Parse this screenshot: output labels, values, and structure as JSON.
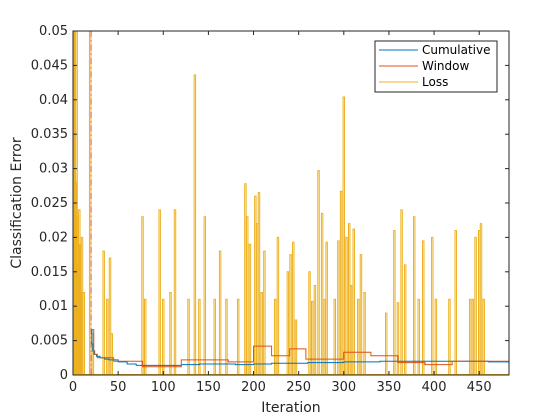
{
  "chart_data": {
    "type": "line",
    "title": "",
    "xlabel": "Iteration",
    "ylabel": "Classification Error",
    "xlim": [
      0,
      483
    ],
    "ylim": [
      0,
      0.05
    ],
    "x_ticks": [
      0,
      50,
      100,
      150,
      200,
      250,
      300,
      350,
      400,
      450
    ],
    "x_tick_labels": [
      "0",
      "50",
      "100",
      "150",
      "200",
      "250",
      "300",
      "350",
      "400",
      "450"
    ],
    "y_ticks": [
      0,
      0.005,
      0.01,
      0.015,
      0.02,
      0.025,
      0.03,
      0.035,
      0.04,
      0.045,
      0.05
    ],
    "y_tick_labels": [
      "0",
      "0.005",
      "0.01",
      "0.015",
      "0.02",
      "0.025",
      "0.03",
      "0.035",
      "0.04",
      "0.045",
      "0.05"
    ],
    "grid": false,
    "legend_position": "top-right",
    "vertical_marker": {
      "x": 20,
      "style": "dash-dot",
      "color": "#d9534f"
    },
    "series": [
      {
        "name": "Cumulative",
        "color": "#0072BD",
        "x": [
          20,
          21,
          22,
          24,
          26,
          30,
          35,
          40,
          50,
          60,
          70,
          80,
          90,
          100,
          120,
          140,
          160,
          180,
          200,
          220,
          240,
          260,
          280,
          300,
          320,
          340,
          360,
          380,
          400,
          420,
          440,
          460,
          483
        ],
        "y": [
          0.0066,
          0.0045,
          0.0035,
          0.003,
          0.0027,
          0.0025,
          0.0023,
          0.0022,
          0.0019,
          0.0016,
          0.0014,
          0.0014,
          0.0014,
          0.0014,
          0.0015,
          0.0016,
          0.0016,
          0.0015,
          0.0016,
          0.0017,
          0.0017,
          0.0018,
          0.0018,
          0.0019,
          0.0019,
          0.002,
          0.002,
          0.002,
          0.002,
          0.002,
          0.002,
          0.0019,
          0.0019
        ]
      },
      {
        "name": "Window",
        "color": "#D95319",
        "x": [
          20,
          23,
          27,
          45,
          77,
          120,
          172,
          200,
          220,
          240,
          258,
          300,
          330,
          360,
          390,
          420,
          483
        ],
        "y": [
          0.0066,
          0.003,
          0.0025,
          0.002,
          0.0012,
          0.0022,
          0.0019,
          0.0042,
          0.0028,
          0.0038,
          0.0023,
          0.0033,
          0.0028,
          0.0018,
          0.0015,
          0.002,
          0.0021
        ]
      },
      {
        "name": "Loss",
        "color": "#EDB120",
        "baseline": 0,
        "spikes": [
          {
            "x": 1,
            "y": 0.05
          },
          {
            "x": 2,
            "y": 0.05
          },
          {
            "x": 3,
            "y": 0.028
          },
          {
            "x": 4,
            "y": 0.05
          },
          {
            "x": 5,
            "y": 0.023
          },
          {
            "x": 6,
            "y": 0.016
          },
          {
            "x": 7,
            "y": 0.024
          },
          {
            "x": 8,
            "y": 0.019
          },
          {
            "x": 9,
            "y": 0.012
          },
          {
            "x": 10,
            "y": 0.02
          },
          {
            "x": 12,
            "y": 0.012
          },
          {
            "x": 19,
            "y": 0.05
          },
          {
            "x": 22,
            "y": 0.006
          },
          {
            "x": 34,
            "y": 0.018
          },
          {
            "x": 38,
            "y": 0.011
          },
          {
            "x": 41,
            "y": 0.017
          },
          {
            "x": 43,
            "y": 0.006
          },
          {
            "x": 77,
            "y": 0.023
          },
          {
            "x": 80,
            "y": 0.011
          },
          {
            "x": 96,
            "y": 0.024
          },
          {
            "x": 100,
            "y": 0.011
          },
          {
            "x": 108,
            "y": 0.012
          },
          {
            "x": 113,
            "y": 0.024
          },
          {
            "x": 128,
            "y": 0.011
          },
          {
            "x": 135,
            "y": 0.0436
          },
          {
            "x": 140,
            "y": 0.011
          },
          {
            "x": 146,
            "y": 0.023
          },
          {
            "x": 157,
            "y": 0.011
          },
          {
            "x": 163,
            "y": 0.018
          },
          {
            "x": 170,
            "y": 0.011
          },
          {
            "x": 183,
            "y": 0.011
          },
          {
            "x": 191,
            "y": 0.0278
          },
          {
            "x": 193,
            "y": 0.023
          },
          {
            "x": 196,
            "y": 0.019
          },
          {
            "x": 202,
            "y": 0.026
          },
          {
            "x": 204,
            "y": 0.022
          },
          {
            "x": 206,
            "y": 0.0265
          },
          {
            "x": 209,
            "y": 0.012
          },
          {
            "x": 212,
            "y": 0.018
          },
          {
            "x": 224,
            "y": 0.011
          },
          {
            "x": 227,
            "y": 0.02
          },
          {
            "x": 238,
            "y": 0.015
          },
          {
            "x": 241,
            "y": 0.0175
          },
          {
            "x": 244,
            "y": 0.0193
          },
          {
            "x": 247,
            "y": 0.008
          },
          {
            "x": 262,
            "y": 0.015
          },
          {
            "x": 265,
            "y": 0.0107
          },
          {
            "x": 268,
            "y": 0.013
          },
          {
            "x": 272,
            "y": 0.0297
          },
          {
            "x": 276,
            "y": 0.0235
          },
          {
            "x": 279,
            "y": 0.011
          },
          {
            "x": 281,
            "y": 0.0193
          },
          {
            "x": 290,
            "y": 0.011
          },
          {
            "x": 294,
            "y": 0.0195
          },
          {
            "x": 297,
            "y": 0.0267
          },
          {
            "x": 300,
            "y": 0.0404
          },
          {
            "x": 303,
            "y": 0.02
          },
          {
            "x": 306,
            "y": 0.022
          },
          {
            "x": 308,
            "y": 0.013
          },
          {
            "x": 311,
            "y": 0.0212
          },
          {
            "x": 316,
            "y": 0.011
          },
          {
            "x": 319,
            "y": 0.0175
          },
          {
            "x": 323,
            "y": 0.012
          },
          {
            "x": 347,
            "y": 0.009
          },
          {
            "x": 356,
            "y": 0.021
          },
          {
            "x": 360,
            "y": 0.0105
          },
          {
            "x": 364,
            "y": 0.024
          },
          {
            "x": 368,
            "y": 0.016
          },
          {
            "x": 378,
            "y": 0.023
          },
          {
            "x": 383,
            "y": 0.011
          },
          {
            "x": 388,
            "y": 0.0195
          },
          {
            "x": 398,
            "y": 0.02
          },
          {
            "x": 402,
            "y": 0.011
          },
          {
            "x": 417,
            "y": 0.011
          },
          {
            "x": 424,
            "y": 0.021
          },
          {
            "x": 440,
            "y": 0.011
          },
          {
            "x": 443,
            "y": 0.011
          },
          {
            "x": 446,
            "y": 0.02
          },
          {
            "x": 450,
            "y": 0.021
          },
          {
            "x": 452,
            "y": 0.022
          },
          {
            "x": 455,
            "y": 0.011
          }
        ]
      }
    ]
  }
}
